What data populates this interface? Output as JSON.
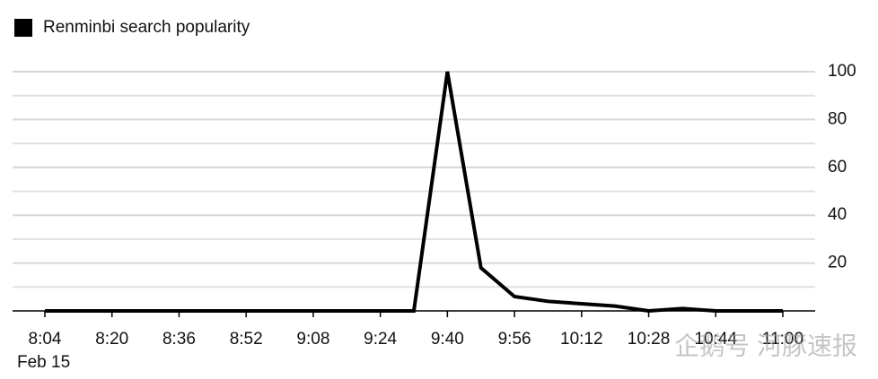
{
  "chart_data": {
    "type": "line",
    "series": [
      {
        "name": "Renminbi search popularity",
        "color": "#000000",
        "values": [
          0,
          0,
          0,
          0,
          0,
          0,
          0,
          0,
          0,
          0,
          0,
          0,
          100,
          18,
          6,
          4,
          3,
          2,
          0,
          1,
          0,
          0,
          0
        ]
      }
    ],
    "categories": [
      "8:04",
      null,
      "8:20",
      null,
      "8:36",
      null,
      "8:52",
      null,
      "9:08",
      null,
      "9:24",
      null,
      "9:40",
      null,
      "9:56",
      null,
      "10:12",
      null,
      "10:28",
      null,
      "10:44",
      null,
      "11:00"
    ],
    "x_sublabel": "Feb 15",
    "ylim": [
      0,
      100
    ],
    "yticks": [
      20,
      40,
      60,
      80,
      100
    ],
    "minor_yticks": [
      10,
      30,
      50,
      70,
      90
    ],
    "grid": true,
    "legend": "top-left",
    "watermark": "企鹅号 河豚速报"
  }
}
